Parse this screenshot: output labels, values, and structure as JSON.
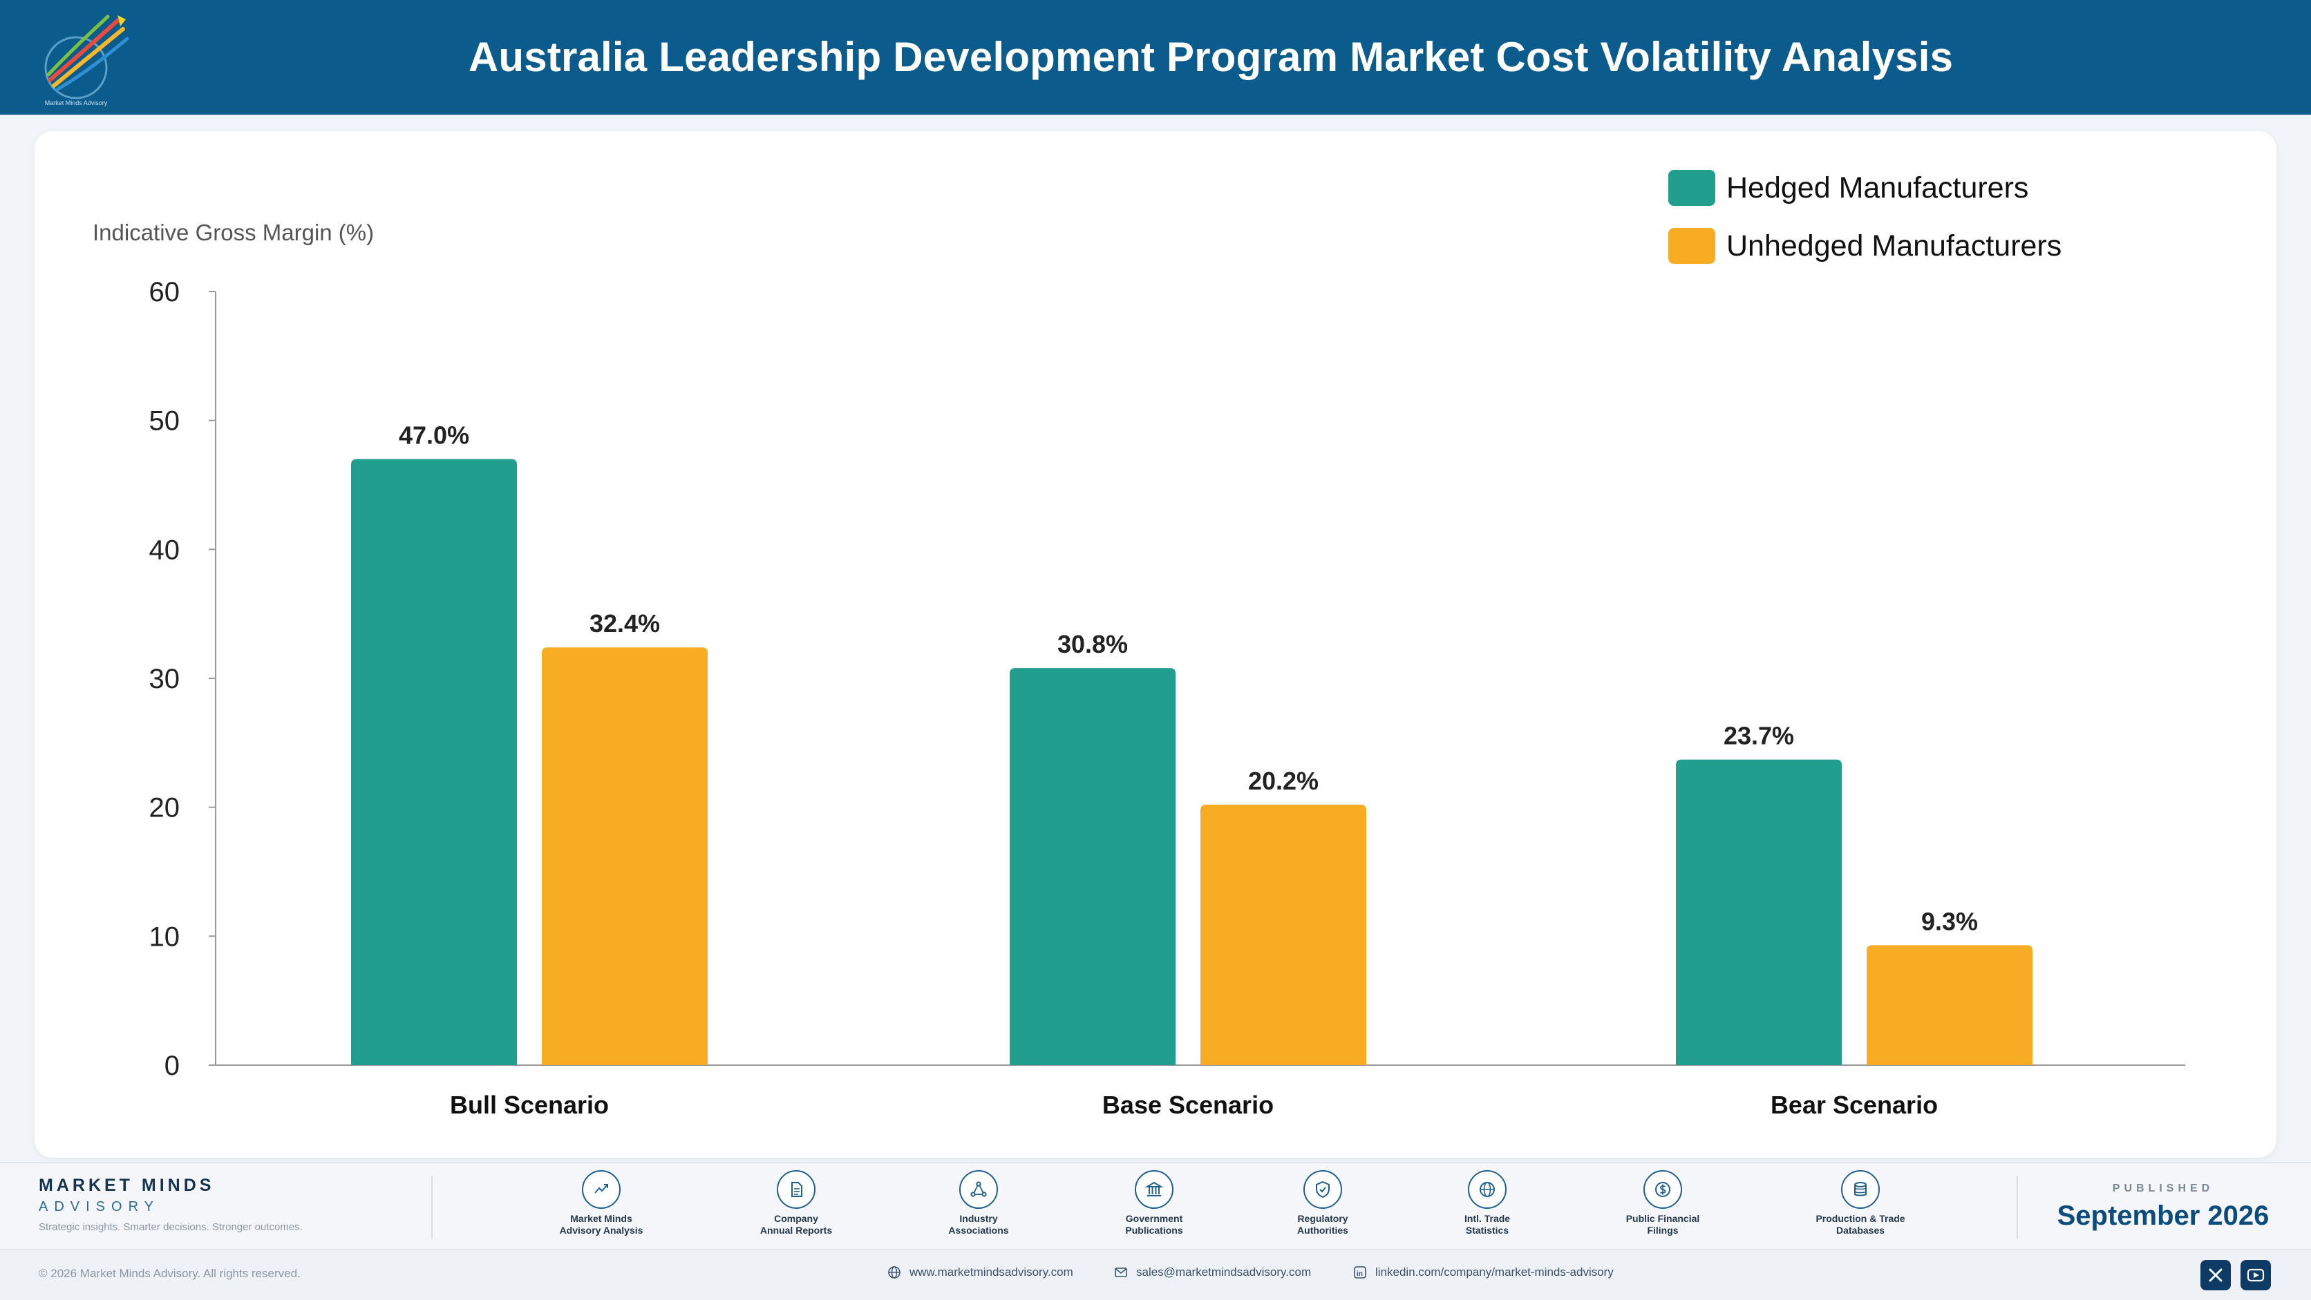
{
  "header": {
    "title": "Australia Leadership Development Program Market Cost Volatility Analysis",
    "logo_caption": "Market Minds Advisory"
  },
  "chart_data": {
    "type": "bar",
    "title": "",
    "ylabel": "Indicative Gross Margin (%)",
    "xlabel": "",
    "categories": [
      "Bull Scenario",
      "Base Scenario",
      "Bear Scenario"
    ],
    "ylim": [
      0,
      60
    ],
    "yticks": [
      0,
      10,
      20,
      30,
      40,
      50,
      60
    ],
    "grid": false,
    "legend_position": "top-right",
    "series": [
      {
        "name": "Hedged Manufacturers",
        "color": "#219e8e",
        "values": [
          47.0,
          30.8,
          23.7
        ],
        "labels": [
          "47.0%",
          "30.8%",
          "23.7%"
        ]
      },
      {
        "name": "Unhedged Manufacturers",
        "color": "#f8ac24",
        "values": [
          32.4,
          20.2,
          9.3
        ],
        "labels": [
          "32.4%",
          "20.2%",
          "9.3%"
        ]
      }
    ]
  },
  "footer": {
    "brand_name": "MARKET MINDS",
    "brand_sub": "ADVISORY",
    "brand_tagline": "Strategic insights. Smarter decisions. Stronger outcomes.",
    "sources": [
      {
        "label": "Market Minds\nAdvisory Analysis",
        "icon": "trend-chart-icon"
      },
      {
        "label": "Company\nAnnual Reports",
        "icon": "document-icon"
      },
      {
        "label": "Industry\nAssociations",
        "icon": "network-icon"
      },
      {
        "label": "Government\nPublications",
        "icon": "government-building-icon"
      },
      {
        "label": "Regulatory\nAuthorities",
        "icon": "shield-check-icon"
      },
      {
        "label": "Intl. Trade\nStatistics",
        "icon": "globe-icon"
      },
      {
        "label": "Public Financial\nFilings",
        "icon": "dollar-coin-icon"
      },
      {
        "label": "Production & Trade\nDatabases",
        "icon": "database-icon"
      }
    ],
    "published_label": "PUBLISHED",
    "published_date": "September 2026",
    "copyright": "© 2026 Market Minds Advisory. All rights reserved.",
    "website": "www.marketmindsadvisory.com",
    "email": "sales@marketmindsadvisory.com",
    "linkedin": "linkedin.com/company/market-minds-advisory"
  }
}
